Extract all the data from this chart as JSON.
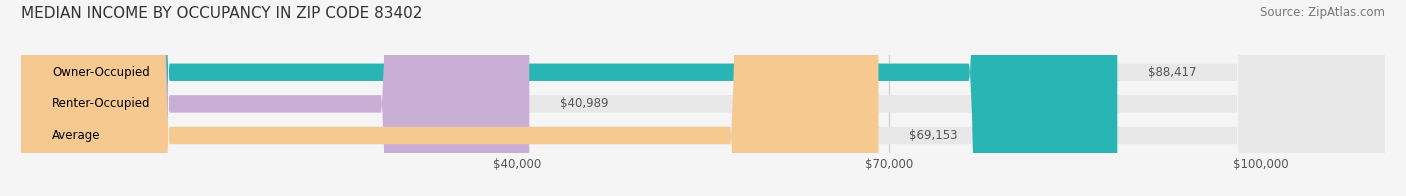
{
  "title": "MEDIAN INCOME BY OCCUPANCY IN ZIP CODE 83402",
  "source": "Source: ZipAtlas.com",
  "categories": [
    "Owner-Occupied",
    "Renter-Occupied",
    "Average"
  ],
  "values": [
    88417,
    40989,
    69153
  ],
  "bar_colors": [
    "#2ab5b5",
    "#c9aed6",
    "#f5c990"
  ],
  "bar_track_color": "#e8e8e8",
  "value_labels": [
    "$88,417",
    "$40,989",
    "$69,153"
  ],
  "xmax": 110000,
  "xticks": [
    40000,
    70000,
    100000
  ],
  "xtick_labels": [
    "$40,000",
    "$70,000",
    "$100,000"
  ],
  "title_fontsize": 11,
  "source_fontsize": 8.5,
  "label_fontsize": 8.5,
  "value_fontsize": 8.5,
  "bar_height": 0.55,
  "background_color": "#f5f5f5"
}
